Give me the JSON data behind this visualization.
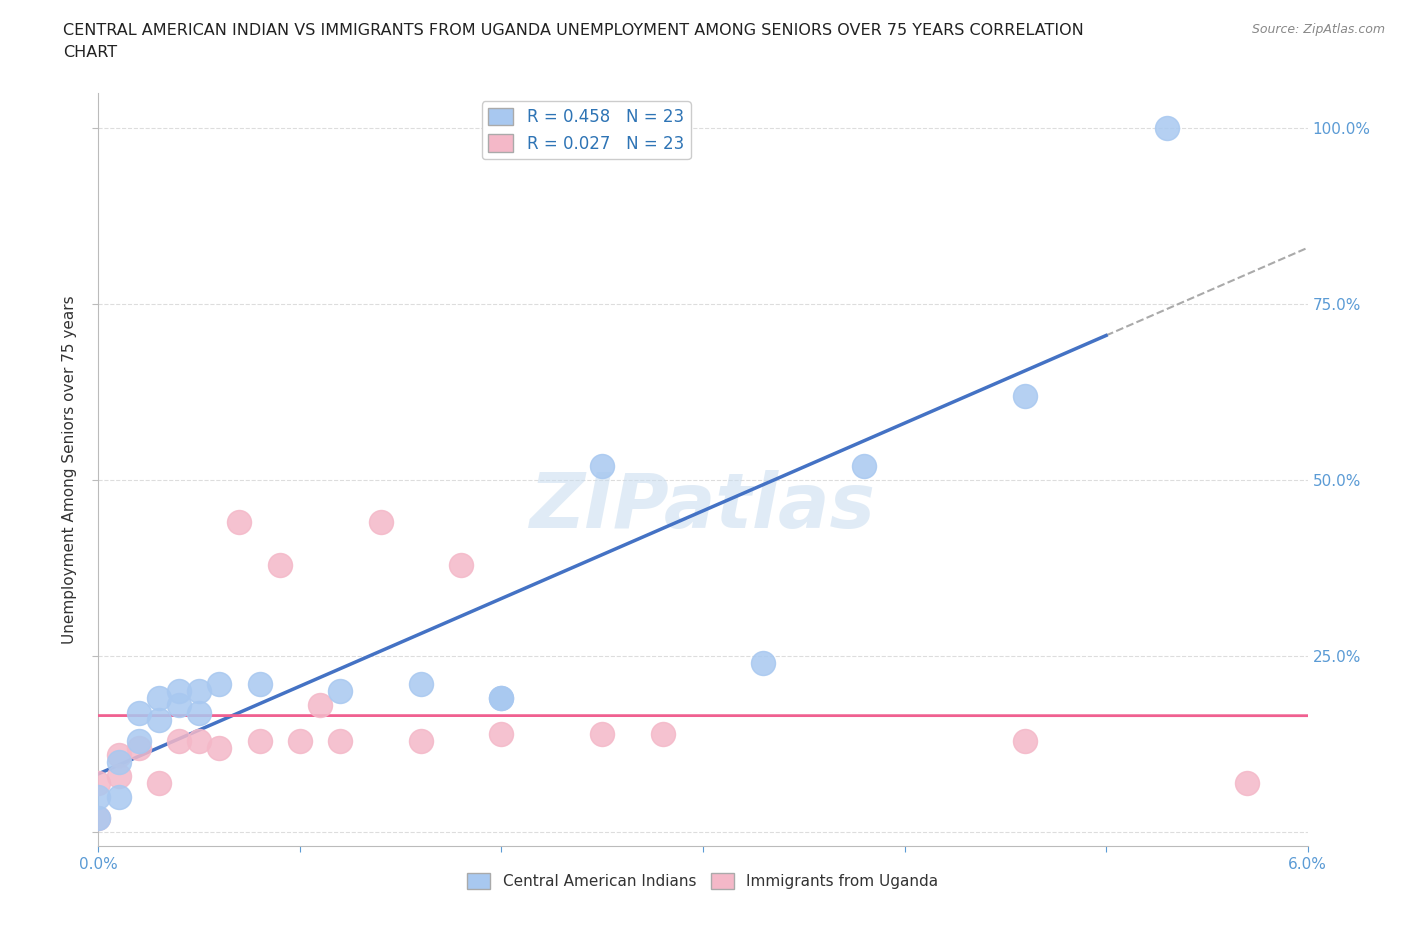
{
  "title_line1": "CENTRAL AMERICAN INDIAN VS IMMIGRANTS FROM UGANDA UNEMPLOYMENT AMONG SENIORS OVER 75 YEARS CORRELATION",
  "title_line2": "CHART",
  "source": "Source: ZipAtlas.com",
  "ylabel": "Unemployment Among Seniors over 75 years",
  "xlim": [
    0.0,
    0.06
  ],
  "ylim": [
    -0.02,
    1.05
  ],
  "xticks": [
    0.0,
    0.01,
    0.02,
    0.03,
    0.04,
    0.05,
    0.06
  ],
  "xticklabels": [
    "0.0%",
    "",
    "",
    "",
    "",
    "",
    "6.0%"
  ],
  "yticks": [
    0.0,
    0.25,
    0.5,
    0.75,
    1.0
  ],
  "yticklabels": [
    "",
    "25.0%",
    "50.0%",
    "75.0%",
    "100.0%"
  ],
  "blue_R": 0.458,
  "blue_N": 23,
  "pink_R": 0.027,
  "pink_N": 23,
  "blue_color": "#A8C8F0",
  "pink_color": "#F4B8C8",
  "blue_line_color": "#4472C4",
  "pink_line_color": "#F06090",
  "dash_line_color": "#AAAAAA",
  "watermark": "ZIPatlas",
  "blue_x": [
    0.0,
    0.0,
    0.001,
    0.001,
    0.002,
    0.002,
    0.003,
    0.003,
    0.004,
    0.004,
    0.005,
    0.005,
    0.006,
    0.008,
    0.012,
    0.016,
    0.02,
    0.02,
    0.025,
    0.033,
    0.038,
    0.046,
    0.053
  ],
  "blue_y": [
    0.02,
    0.05,
    0.05,
    0.1,
    0.13,
    0.17,
    0.16,
    0.19,
    0.18,
    0.2,
    0.17,
    0.2,
    0.21,
    0.21,
    0.2,
    0.21,
    0.19,
    0.19,
    0.52,
    0.24,
    0.52,
    0.62,
    1.0
  ],
  "pink_x": [
    0.0,
    0.0,
    0.001,
    0.001,
    0.002,
    0.003,
    0.004,
    0.005,
    0.006,
    0.007,
    0.008,
    0.009,
    0.01,
    0.011,
    0.012,
    0.014,
    0.016,
    0.018,
    0.02,
    0.025,
    0.028,
    0.046,
    0.057
  ],
  "pink_y": [
    0.02,
    0.07,
    0.08,
    0.11,
    0.12,
    0.07,
    0.13,
    0.13,
    0.12,
    0.44,
    0.13,
    0.38,
    0.13,
    0.18,
    0.13,
    0.44,
    0.13,
    0.38,
    0.14,
    0.14,
    0.14,
    0.13,
    0.07
  ],
  "grid_color": "#DDDDDD",
  "background_color": "#FFFFFF",
  "tick_label_color": "#5B9BD5",
  "legend_label_color": "#2E74B5"
}
